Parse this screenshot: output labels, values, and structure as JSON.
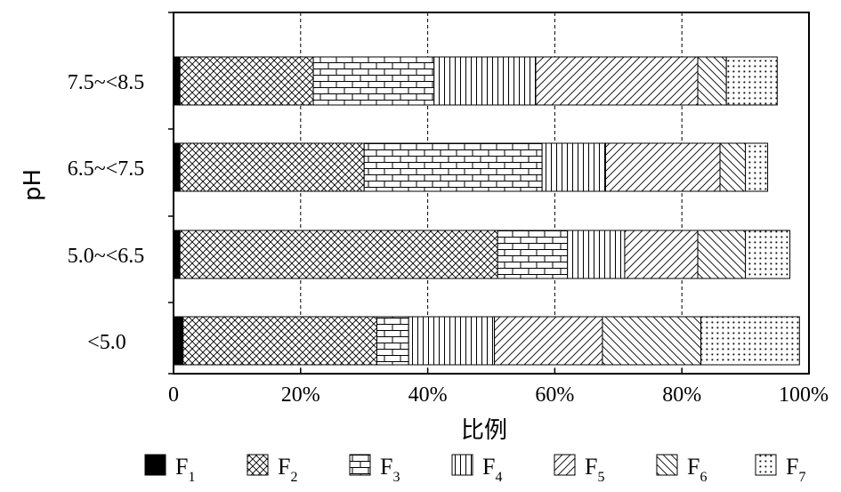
{
  "chart_data": {
    "type": "bar",
    "orientation": "horizontal",
    "stacked": true,
    "title": "",
    "xlabel": "比例",
    "ylabel": "pH",
    "xlim": [
      0,
      100
    ],
    "x_ticks": [
      "0",
      "20%",
      "40%",
      "60%",
      "80%",
      "100%"
    ],
    "categories": [
      "7.5~<8.5",
      "6.5~<7.5",
      "5.0~<6.5",
      "<5.0"
    ],
    "series": [
      {
        "name": "F",
        "sub": "1",
        "pattern": "solid",
        "values": [
          1,
          1,
          1,
          1.5
        ]
      },
      {
        "name": "F",
        "sub": "2",
        "pattern": "crosshatch",
        "values": [
          21,
          29,
          50,
          30.5
        ]
      },
      {
        "name": "F",
        "sub": "3",
        "pattern": "brick",
        "values": [
          19,
          28,
          11,
          5
        ]
      },
      {
        "name": "F",
        "sub": "4",
        "pattern": "vertical",
        "values": [
          16,
          10,
          9,
          13.5
        ]
      },
      {
        "name": "F",
        "sub": "5",
        "pattern": "diag-right",
        "values": [
          25.5,
          18,
          11.5,
          17
        ]
      },
      {
        "name": "F",
        "sub": "6",
        "pattern": "diag-left",
        "values": [
          4.5,
          4,
          7.5,
          15.5
        ]
      },
      {
        "name": "F",
        "sub": "7",
        "pattern": "dots",
        "values": [
          8,
          3.5,
          7,
          15.5
        ]
      }
    ],
    "grid": {
      "vertical": true,
      "style": "dashed"
    },
    "legend_position": "bottom"
  }
}
